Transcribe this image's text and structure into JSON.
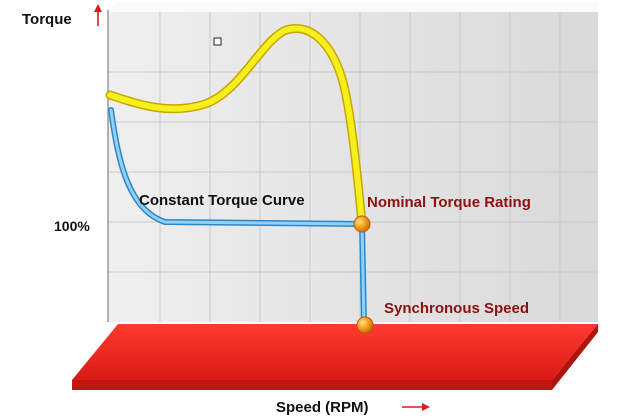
{
  "diagram": {
    "y_axis_label": "Torque",
    "x_axis_label": "Speed (RPM)",
    "y_tick_label": "100%",
    "curve_labels": {
      "constant_torque": "Constant Torque Curve",
      "nominal_rating": "Nominal Torque Rating",
      "synchronous": "Synchronous Speed"
    },
    "colors": {
      "axis_arrow": "#e01818",
      "dark_red_text": "#8e1010",
      "yellow_curve": "#f2ee1e",
      "blue_curve": "#59b3e6",
      "marker": "#f39a1c",
      "floor": "#f02a24"
    }
  }
}
